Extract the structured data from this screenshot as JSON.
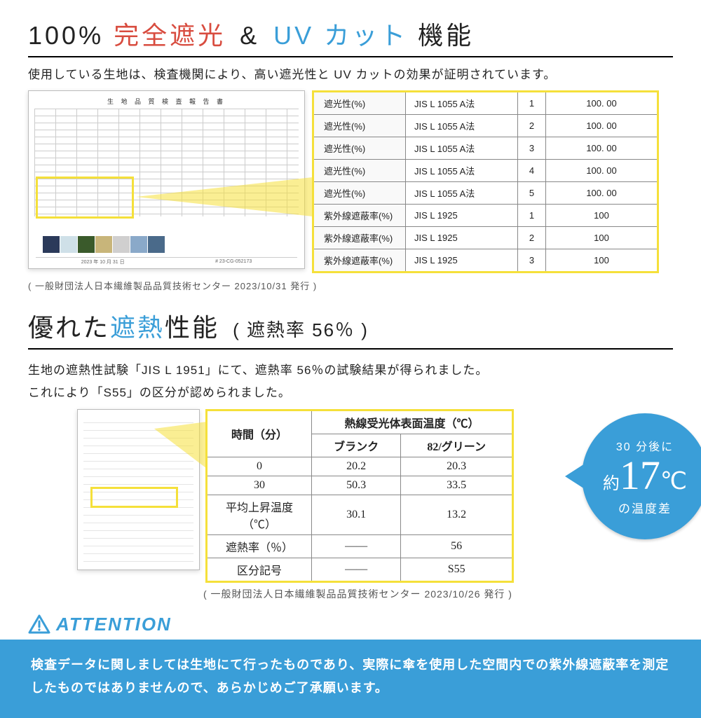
{
  "section1": {
    "title_pre": "100%",
    "title_accent_red": "完全遮光",
    "title_amp": " & ",
    "title_accent_blue": "UV カット",
    "title_post": "機能",
    "subtitle": "使用している生地は、検査機関により、高い遮光性と UV カットの効果が証明されています。",
    "doc_title": "生 地 品 質 検 査 報 告 書",
    "footer_date": "2023 年 10 月 31 日",
    "footer_no": "# 23-CG-052173",
    "caption": "( 一般財団法人日本繊維製品品質技術センター 2023/10/31 発行 )",
    "swatch_colors": [
      "#2b3a5a",
      "#cfe0e8",
      "#3a5a2b",
      "#c8b57a",
      "#d0cfcf",
      "#8aa9c9",
      "#4a6a8a"
    ]
  },
  "table1": {
    "rows": [
      {
        "label": "遮光性(%)",
        "method": "JIS L 1055    A法",
        "n": "1",
        "val": "100. 00"
      },
      {
        "label": "遮光性(%)",
        "method": "JIS L 1055    A法",
        "n": "2",
        "val": "100. 00"
      },
      {
        "label": "遮光性(%)",
        "method": "JIS L 1055    A法",
        "n": "3",
        "val": "100. 00"
      },
      {
        "label": "遮光性(%)",
        "method": "JIS L 1055    A法",
        "n": "4",
        "val": "100. 00"
      },
      {
        "label": "遮光性(%)",
        "method": "JIS L 1055    A法",
        "n": "5",
        "val": "100. 00"
      },
      {
        "label": "紫外線遮蔽率(%)",
        "method": "JIS L 1925",
        "n": "1",
        "val": "100"
      },
      {
        "label": "紫外線遮蔽率(%)",
        "method": "JIS L 1925",
        "n": "2",
        "val": "100"
      },
      {
        "label": "紫外線遮蔽率(%)",
        "method": "JIS L 1925",
        "n": "3",
        "val": "100"
      }
    ],
    "border_color": "#f5e03a",
    "cell_border": "#888888",
    "label_bg": "#f9f9f9"
  },
  "section2": {
    "title_pre": "優れた",
    "title_accent": "遮熱",
    "title_post": "性能",
    "title_paren": "( 遮熱率 56％ )",
    "paragraph": "生地の遮熱性試験「JIS L 1951」にて、遮熱率 56％の試験結果が得られました。\nこれにより「S55」の区分が認められました。",
    "caption": "( 一般財団法人日本繊維製品品質技術センター 2023/10/26 発行 )"
  },
  "table2": {
    "header_time": "時間（分）",
    "header_group": "熱線受光体表面温度（℃）",
    "subheaders": [
      "ブランク",
      "82/グリーン"
    ],
    "rows": [
      {
        "label": "0",
        "c1": "20.2",
        "c2": "20.3"
      },
      {
        "label": "30",
        "c1": "50.3",
        "c2": "33.5"
      },
      {
        "label": "平均上昇温度（℃）",
        "c1": "30.1",
        "c2": "13.2"
      },
      {
        "label": "遮熱率（％）",
        "c1": "——",
        "c2": "56"
      },
      {
        "label": "区分記号",
        "c1": "——",
        "c2": "S55"
      }
    ],
    "border_color": "#f5e03a"
  },
  "bubble": {
    "line1": "30 分後に",
    "yaku": "約",
    "num": "17",
    "deg": "℃",
    "line3": "の温度差",
    "bg": "#3a9ed8"
  },
  "attention": {
    "label": "ATTENTION",
    "body": "検査データに関しましては生地にて行ったものであり、実際に傘を使用した空間内での紫外線遮蔽率を測定したものではありませんので、あらかじめご了承願います。",
    "color": "#3a9ed8"
  }
}
